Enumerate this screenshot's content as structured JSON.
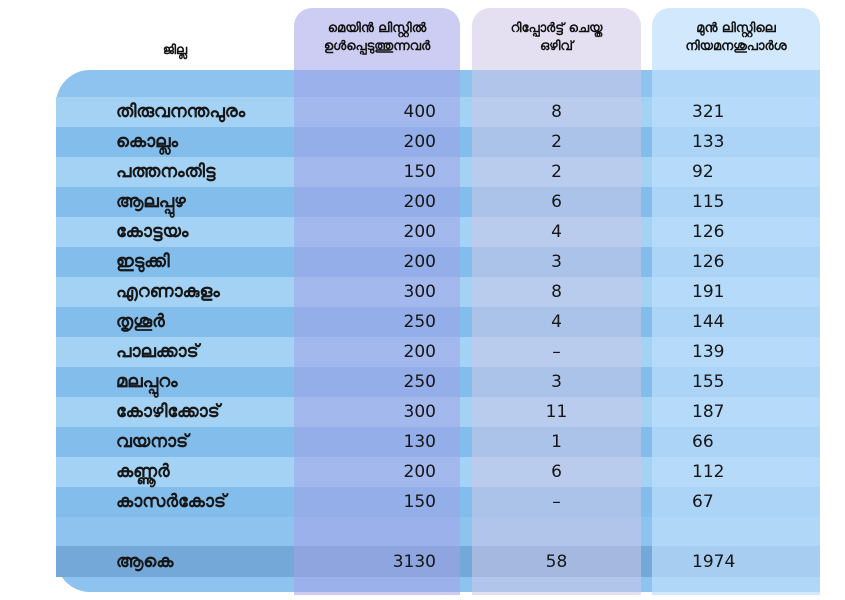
{
  "headers": {
    "district": "ജില്ല",
    "main_list": [
      "മെയിൻ ലിസ്റ്റിൽ",
      "ഉൾപ്പെടുത്തുന്നവർ"
    ],
    "reported": [
      "റിപ്പോർട്ട് ചെയ്ത",
      "ഒഴിവ്"
    ],
    "prev_list": [
      "മുൻ ലിസ്റ്റിലെ",
      "നിയമനശുപാർശ"
    ]
  },
  "rows": [
    {
      "district": "തിരുവനന്തപുരം",
      "main": "400",
      "reported": "8",
      "previous": "321"
    },
    {
      "district": "കൊല്ലം",
      "main": "200",
      "reported": "2",
      "previous": "133"
    },
    {
      "district": "പത്തനംതിട്ട",
      "main": "150",
      "reported": "2",
      "previous": "92"
    },
    {
      "district": "ആലപ്പുഴ",
      "main": "200",
      "reported": "6",
      "previous": "115"
    },
    {
      "district": "കോട്ടയം",
      "main": "200",
      "reported": "4",
      "previous": "126"
    },
    {
      "district": "ഇടുക്കി",
      "main": "200",
      "reported": "3",
      "previous": "126"
    },
    {
      "district": "എറണാകുളം",
      "main": "300",
      "reported": "8",
      "previous": "191"
    },
    {
      "district": "തൃശൂർ",
      "main": "250",
      "reported": "4",
      "previous": "144"
    },
    {
      "district": "പാലക്കാട്",
      "main": "200",
      "reported": "–",
      "previous": "139"
    },
    {
      "district": "മലപ്പുറം",
      "main": "250",
      "reported": "3",
      "previous": "155"
    },
    {
      "district": "കോഴിക്കോട്",
      "main": "300",
      "reported": "11",
      "previous": "187"
    },
    {
      "district": "വയനാട്",
      "main": "130",
      "reported": "1",
      "previous": "66"
    },
    {
      "district": "കണ്ണൂർ",
      "main": "200",
      "reported": "6",
      "previous": "112"
    },
    {
      "district": "കാസർകോട്",
      "main": "150",
      "reported": "–",
      "previous": "67"
    }
  ],
  "total": {
    "district": "ആകെ",
    "main": "3130",
    "reported": "58",
    "previous": "1974"
  }
}
